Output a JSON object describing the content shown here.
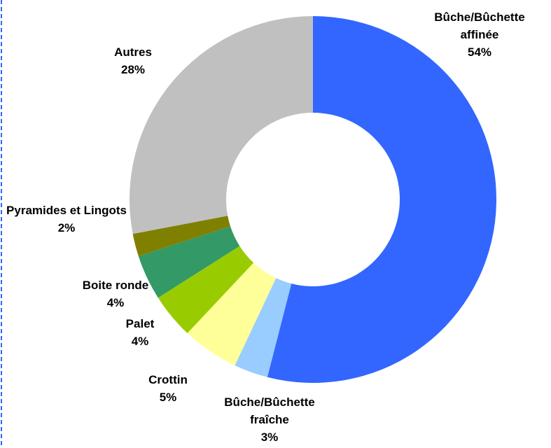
{
  "chart_data": {
    "type": "donut",
    "categories": [
      "Bûche/Bûchette affinée",
      "Bûche/Bûchette fraîche",
      "Crottin",
      "Palet",
      "Boite ronde",
      "Pyramides et Lingots",
      "Autres"
    ],
    "values": [
      54,
      3,
      5,
      4,
      4,
      2,
      28
    ],
    "value_labels": [
      "54%",
      "3%",
      "5%",
      "4%",
      "4%",
      "2%",
      "28%"
    ],
    "colors": [
      "#3366FF",
      "#99CCFF",
      "#FFFF99",
      "#99CC00",
      "#339966",
      "#808000",
      "#C0C0C0"
    ]
  }
}
